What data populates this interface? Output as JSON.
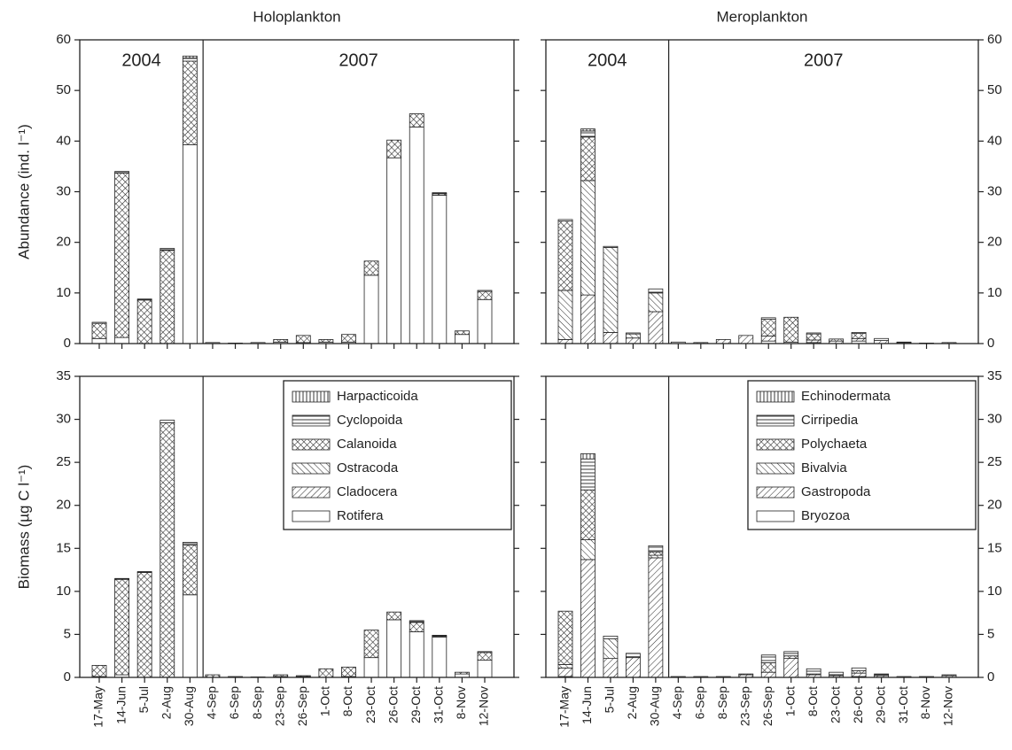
{
  "chart_data": [
    {
      "type": "stacked_bar",
      "title": "Holoplankton",
      "ylabel": "Abundance (ind. l⁻¹)",
      "annotations": [
        "2004",
        "2007"
      ],
      "ylim": [
        0,
        60
      ],
      "yticks": [
        0,
        10,
        20,
        30,
        40,
        50,
        60
      ],
      "yaxis_side": "left",
      "series": [
        {
          "pattern": "none",
          "values": [
            1.0,
            1.2,
            0,
            0,
            39.3,
            0.2,
            0.1,
            0.2,
            0.3,
            0.2,
            0.3,
            0.3,
            13.5,
            36.7,
            42.8,
            29.3,
            1.8,
            8.7
          ]
        },
        {
          "pattern": "diagonal",
          "values": [
            0,
            0,
            0,
            0,
            0,
            0,
            0,
            0,
            0,
            0,
            0,
            0,
            0,
            0,
            0,
            0,
            0,
            0
          ]
        },
        {
          "pattern": "back-diagonal",
          "values": [
            0,
            0,
            0,
            0,
            0,
            0,
            0,
            0,
            0,
            0,
            0,
            0,
            0,
            0,
            0,
            0,
            0,
            0
          ]
        },
        {
          "pattern": "crosshatch",
          "values": [
            3.0,
            32.5,
            8.6,
            18.4,
            16.5,
            0,
            0,
            0,
            0.5,
            1.4,
            0.5,
            1.5,
            2.8,
            3.5,
            2.6,
            0.3,
            0.7,
            1.6
          ]
        },
        {
          "pattern": "horizontal",
          "values": [
            0.2,
            0.3,
            0.2,
            0.4,
            0.6,
            0,
            0,
            0,
            0,
            0,
            0,
            0,
            0,
            0,
            0,
            0.2,
            0,
            0.2
          ]
        },
        {
          "pattern": "vertical",
          "values": [
            0,
            0,
            0,
            0,
            0.4,
            0,
            0,
            0,
            0,
            0,
            0,
            0,
            0,
            0,
            0,
            0,
            0,
            0
          ]
        }
      ]
    },
    {
      "type": "stacked_bar",
      "title": "Meroplankton",
      "annotations": [
        "2004",
        "2007"
      ],
      "ylim": [
        0,
        60
      ],
      "yticks": [
        0,
        10,
        20,
        30,
        40,
        50,
        60
      ],
      "yaxis_side": "right",
      "series": [
        {
          "pattern": "none",
          "values": [
            0,
            0,
            0,
            0,
            0,
            0.3,
            0,
            0,
            0,
            0.5,
            0.3,
            0.2,
            0,
            0.5,
            0,
            0,
            0,
            0
          ]
        },
        {
          "pattern": "diagonal",
          "values": [
            0.8,
            9.6,
            2.2,
            1.1,
            6.3,
            0,
            0.2,
            0.8,
            1.6,
            1.0,
            0,
            0.5,
            0.5,
            0.5,
            0.6,
            0.2,
            0.1,
            0.2
          ]
        },
        {
          "pattern": "back-diagonal",
          "values": [
            9.7,
            22.6,
            16.8,
            0.8,
            3.7,
            0,
            0,
            0,
            0,
            0,
            0,
            0,
            0,
            0,
            0,
            0,
            0,
            0
          ]
        },
        {
          "pattern": "crosshatch",
          "values": [
            13.7,
            8.6,
            0,
            0,
            0,
            0,
            0,
            0,
            0,
            3.3,
            4.9,
            1.2,
            0.4,
            1.0,
            0,
            0.1,
            0,
            0
          ]
        },
        {
          "pattern": "horizontal",
          "values": [
            0.3,
            1.2,
            0.2,
            0.2,
            0.8,
            0,
            0,
            0,
            0,
            0.3,
            0,
            0.2,
            0,
            0.2,
            0.4,
            0,
            0,
            0
          ]
        },
        {
          "pattern": "vertical",
          "values": [
            0,
            0.4,
            0,
            0,
            0,
            0,
            0,
            0,
            0,
            0,
            0,
            0,
            0,
            0,
            0,
            0,
            0,
            0
          ]
        }
      ]
    },
    {
      "type": "stacked_bar",
      "ylabel": "Biomass (µg C l⁻¹)",
      "categories": [
        "17-May",
        "14-Jun",
        "5-Jul",
        "2-Aug",
        "30-Aug",
        "4-Sep",
        "6-Sep",
        "8-Sep",
        "23-Sep",
        "26-Sep",
        "1-Oct",
        "8-Oct",
        "23-Oct",
        "26-Oct",
        "29-Oct",
        "31-Oct",
        "8-Nov",
        "12-Nov"
      ],
      "ylim": [
        0,
        35
      ],
      "yticks": [
        0,
        5,
        10,
        15,
        20,
        25,
        30,
        35
      ],
      "yaxis_side": "left",
      "legend": "upper right",
      "series": [
        {
          "name": "Rotifera",
          "pattern": "none",
          "values": [
            0.1,
            0.3,
            0,
            0,
            9.6,
            0,
            0.1,
            0.05,
            0.1,
            0.1,
            0,
            0.1,
            2.3,
            6.7,
            5.3,
            4.7,
            0.4,
            2.0
          ]
        },
        {
          "name": "Cladocera",
          "pattern": "diagonal",
          "values": [
            0,
            0,
            0,
            0,
            0,
            0,
            0,
            0,
            0,
            0,
            0,
            0,
            0,
            0,
            0,
            0,
            0,
            0
          ]
        },
        {
          "name": "Ostracoda",
          "pattern": "back-diagonal",
          "values": [
            0,
            0,
            0,
            0,
            0,
            0,
            0,
            0,
            0,
            0,
            0,
            0,
            0,
            0,
            0,
            0,
            0,
            0
          ]
        },
        {
          "name": "Calanoida",
          "pattern": "crosshatch",
          "values": [
            1.3,
            11.1,
            12.2,
            29.6,
            5.8,
            0.3,
            0,
            0,
            0.2,
            0.1,
            1.0,
            1.1,
            3.2,
            0.9,
            1.1,
            0.1,
            0.2,
            0.9
          ]
        },
        {
          "name": "Cyclopoida",
          "pattern": "horizontal",
          "values": [
            0,
            0.1,
            0.1,
            0.3,
            0.3,
            0,
            0,
            0,
            0,
            0,
            0,
            0,
            0,
            0,
            0.2,
            0.1,
            0,
            0.1
          ]
        },
        {
          "name": "Harpacticoida",
          "pattern": "vertical",
          "values": [
            0,
            0,
            0,
            0,
            0,
            0,
            0,
            0,
            0,
            0,
            0,
            0,
            0,
            0,
            0,
            0,
            0,
            0
          ]
        }
      ]
    },
    {
      "type": "stacked_bar",
      "categories": [
        "17-May",
        "14-Jun",
        "5-Jul",
        "2-Aug",
        "30-Aug",
        "4-Sep",
        "6-Sep",
        "8-Sep",
        "23-Sep",
        "26-Sep",
        "1-Oct",
        "8-Oct",
        "23-Oct",
        "26-Oct",
        "29-Oct",
        "31-Oct",
        "8-Nov",
        "12-Nov"
      ],
      "ylim": [
        0,
        35
      ],
      "yticks": [
        0,
        5,
        10,
        15,
        20,
        25,
        30,
        35
      ],
      "yaxis_side": "right",
      "legend": "upper right",
      "series": [
        {
          "name": "Bryozoa",
          "pattern": "none",
          "values": [
            0.1,
            0,
            0,
            0,
            0,
            0.1,
            0.1,
            0.1,
            0,
            0,
            0,
            0,
            0,
            0.1,
            0,
            0.1,
            0.1,
            0
          ]
        },
        {
          "name": "Gastropoda",
          "pattern": "diagonal",
          "values": [
            1.0,
            13.7,
            2.2,
            2.3,
            13.9,
            0,
            0,
            0,
            0.3,
            0.6,
            2.2,
            0.3,
            0.2,
            0.4,
            0.2,
            0,
            0,
            0.2
          ]
        },
        {
          "name": "Bivalvia",
          "pattern": "back-diagonal",
          "values": [
            0.4,
            2.3,
            2.3,
            0.1,
            0.3,
            0,
            0,
            0,
            0,
            0,
            0,
            0,
            0,
            0,
            0,
            0,
            0,
            0
          ]
        },
        {
          "name": "Polychaeta",
          "pattern": "crosshatch",
          "values": [
            6.2,
            5.8,
            0,
            0,
            0.4,
            0,
            0,
            0,
            0.1,
            1.1,
            0.3,
            0.1,
            0.1,
            0.3,
            0,
            0,
            0,
            0.1
          ]
        },
        {
          "name": "Cirripedia",
          "pattern": "horizontal",
          "values": [
            0,
            3.6,
            0.3,
            0.4,
            0.7,
            0,
            0,
            0,
            0,
            0.9,
            0.5,
            0.6,
            0.3,
            0.3,
            0.2,
            0,
            0,
            0
          ]
        },
        {
          "name": "Echinodermata",
          "pattern": "vertical",
          "values": [
            0,
            0.6,
            0,
            0,
            0,
            0,
            0,
            0,
            0,
            0,
            0,
            0,
            0,
            0,
            0,
            0,
            0,
            0
          ]
        }
      ]
    }
  ]
}
